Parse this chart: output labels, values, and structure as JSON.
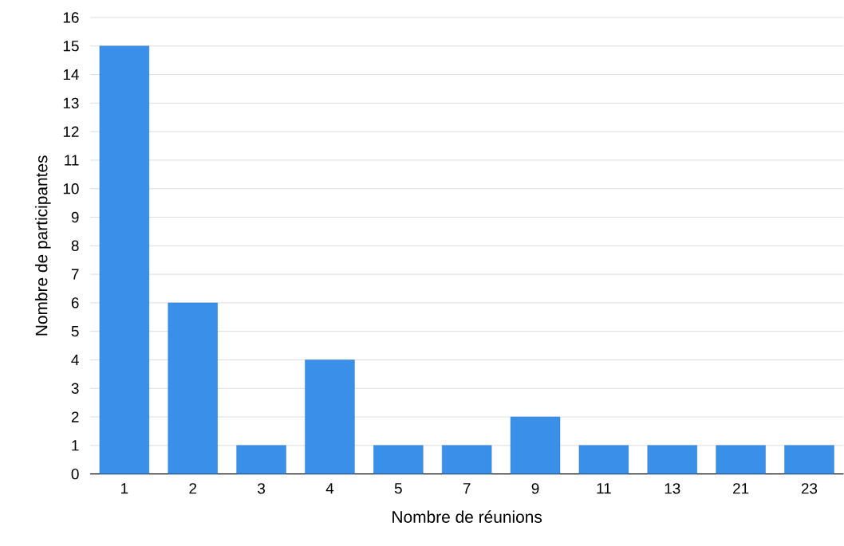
{
  "chart_data": {
    "type": "bar",
    "xlabel": "Nombre de réunions",
    "ylabel": "Nombre de participantes",
    "categories": [
      "1",
      "2",
      "3",
      "4",
      "5",
      "7",
      "9",
      "11",
      "13",
      "21",
      "23"
    ],
    "values": [
      15,
      6,
      1,
      4,
      1,
      1,
      2,
      1,
      1,
      1,
      1
    ],
    "color": "#3a8fe8",
    "ylim": [
      0,
      16
    ],
    "yticks": [
      0,
      1,
      2,
      3,
      4,
      5,
      6,
      7,
      8,
      9,
      10,
      11,
      12,
      13,
      14,
      15,
      16
    ],
    "grid": "y"
  }
}
